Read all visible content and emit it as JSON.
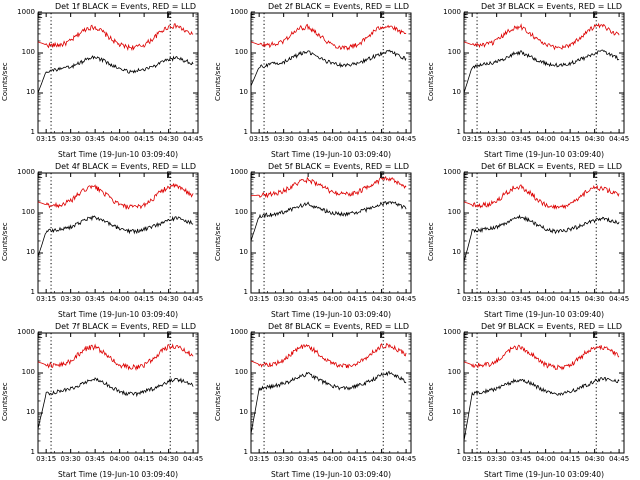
{
  "figure": {
    "panels": [
      {
        "title": "Det 1f BLACK = Events, RED = LLD"
      },
      {
        "title": "Det 2f BLACK = Events, RED = LLD"
      },
      {
        "title": "Det 3f BLACK = Events, RED = LLD"
      },
      {
        "title": "Det 4f BLACK = Events, RED = LLD"
      },
      {
        "title": "Det 5f BLACK = Events, RED = LLD"
      },
      {
        "title": "Det 6f BLACK = Events, RED = LLD"
      },
      {
        "title": "Det 7f BLACK = Events, RED = LLD"
      },
      {
        "title": "Det 8f BLACK = Events, RED = LLD"
      },
      {
        "title": "Det 9f BLACK = Events, RED = LLD"
      }
    ],
    "ylabel": "Counts/sec",
    "xlabel": "Start Time (19-Jun-10 03:09:40)",
    "yticks": [
      "1",
      "10",
      "100",
      "1000"
    ],
    "xticks": [
      "03:15",
      "03:30",
      "03:45",
      "04:00",
      "04:15",
      "04:30",
      "04:45"
    ],
    "markers": [
      "E",
      "E"
    ],
    "colors": {
      "events": "#000000",
      "lld": "#dd0000"
    }
  },
  "chart_data": {
    "type": "line",
    "yscale": "log",
    "ylim": [
      1,
      1000
    ],
    "xlim_minutes": [
      0,
      98
    ],
    "x_minutes": [
      0,
      5,
      10,
      15,
      20,
      25,
      30,
      35,
      40,
      45,
      50,
      55,
      60,
      65,
      70,
      75,
      80,
      85,
      90,
      95
    ],
    "vlines_minutes": [
      8,
      81
    ],
    "panels": [
      {
        "series": [
          {
            "name": "LLD",
            "values": [
              190,
              160,
              155,
              165,
              200,
              300,
              420,
              450,
              330,
              220,
              160,
              140,
              140,
              160,
              220,
              340,
              460,
              480,
              360,
              280
            ]
          },
          {
            "name": "Events",
            "values": [
              10,
              35,
              38,
              40,
              45,
              55,
              70,
              80,
              65,
              50,
              40,
              35,
              35,
              40,
              45,
              55,
              70,
              75,
              65,
              55
            ]
          }
        ]
      },
      {
        "series": [
          {
            "name": "LLD",
            "values": [
              190,
              160,
              160,
              165,
              200,
              300,
              420,
              460,
              330,
              220,
              160,
              140,
              140,
              160,
              220,
              340,
              460,
              480,
              360,
              280
            ]
          },
          {
            "name": "Events",
            "values": [
              15,
              45,
              50,
              55,
              60,
              75,
              95,
              105,
              85,
              65,
              55,
              50,
              50,
              55,
              65,
              80,
              100,
              110,
              90,
              70
            ]
          }
        ]
      },
      {
        "series": [
          {
            "name": "LLD",
            "values": [
              190,
              160,
              160,
              165,
              200,
              300,
              420,
              450,
              330,
              220,
              160,
              140,
              140,
              160,
              220,
              340,
              460,
              470,
              360,
              280
            ]
          },
          {
            "name": "Events",
            "values": [
              10,
              45,
              50,
              55,
              60,
              75,
              95,
              105,
              85,
              65,
              55,
              50,
              50,
              55,
              65,
              80,
              100,
              110,
              90,
              70
            ]
          }
        ]
      },
      {
        "series": [
          {
            "name": "LLD",
            "values": [
              190,
              160,
              155,
              165,
              200,
              300,
              420,
              450,
              330,
              220,
              160,
              140,
              140,
              160,
              220,
              340,
              460,
              470,
              360,
              280
            ]
          },
          {
            "name": "Events",
            "values": [
              8,
              35,
              38,
              40,
              45,
              55,
              70,
              80,
              65,
              50,
              40,
              35,
              35,
              40,
              45,
              55,
              70,
              75,
              65,
              55
            ]
          }
        ]
      },
      {
        "series": [
          {
            "name": "LLD",
            "values": [
              270,
              280,
              290,
              310,
              360,
              460,
              600,
              680,
              560,
              420,
              330,
              300,
              300,
              330,
              420,
              560,
              700,
              720,
              560,
              420
            ]
          },
          {
            "name": "Events",
            "values": [
              20,
              85,
              90,
              95,
              105,
              125,
              150,
              170,
              140,
              115,
              100,
              95,
              95,
              105,
              120,
              140,
              170,
              190,
              160,
              130
            ]
          }
        ]
      },
      {
        "series": [
          {
            "name": "LLD",
            "values": [
              190,
              160,
              160,
              165,
              200,
              300,
              420,
              450,
              330,
              220,
              160,
              140,
              140,
              160,
              220,
              340,
              420,
              420,
              340,
              280
            ]
          },
          {
            "name": "Events",
            "values": [
              6,
              35,
              38,
              40,
              45,
              55,
              70,
              80,
              65,
              50,
              40,
              35,
              35,
              40,
              45,
              55,
              65,
              75,
              65,
              55
            ]
          }
        ]
      },
      {
        "series": [
          {
            "name": "LLD",
            "values": [
              190,
              160,
              155,
              165,
              200,
              300,
              420,
              450,
              330,
              220,
              160,
              140,
              140,
              160,
              220,
              340,
              460,
              470,
              360,
              280
            ]
          },
          {
            "name": "Events",
            "values": [
              4,
              30,
              33,
              36,
              40,
              50,
              62,
              70,
              58,
              45,
              35,
              30,
              30,
              35,
              40,
              50,
              62,
              70,
              60,
              50
            ]
          }
        ]
      },
      {
        "series": [
          {
            "name": "LLD",
            "values": [
              200,
              165,
              165,
              170,
              210,
              310,
              430,
              460,
              340,
              230,
              170,
              150,
              150,
              170,
              230,
              350,
              470,
              480,
              370,
              290
            ]
          },
          {
            "name": "Events",
            "values": [
              3,
              40,
              45,
              48,
              55,
              65,
              85,
              95,
              75,
              58,
              48,
              42,
              42,
              48,
              55,
              70,
              90,
              100,
              80,
              60
            ]
          }
        ]
      },
      {
        "series": [
          {
            "name": "LLD",
            "values": [
              190,
              160,
              155,
              165,
              200,
              300,
              420,
              450,
              330,
              220,
              160,
              140,
              140,
              160,
              220,
              340,
              420,
              440,
              360,
              280
            ]
          },
          {
            "name": "Events",
            "values": [
              2,
              30,
              33,
              36,
              40,
              50,
              62,
              70,
              58,
              45,
              35,
              30,
              30,
              35,
              40,
              50,
              62,
              72,
              70,
              60
            ]
          }
        ]
      }
    ]
  }
}
